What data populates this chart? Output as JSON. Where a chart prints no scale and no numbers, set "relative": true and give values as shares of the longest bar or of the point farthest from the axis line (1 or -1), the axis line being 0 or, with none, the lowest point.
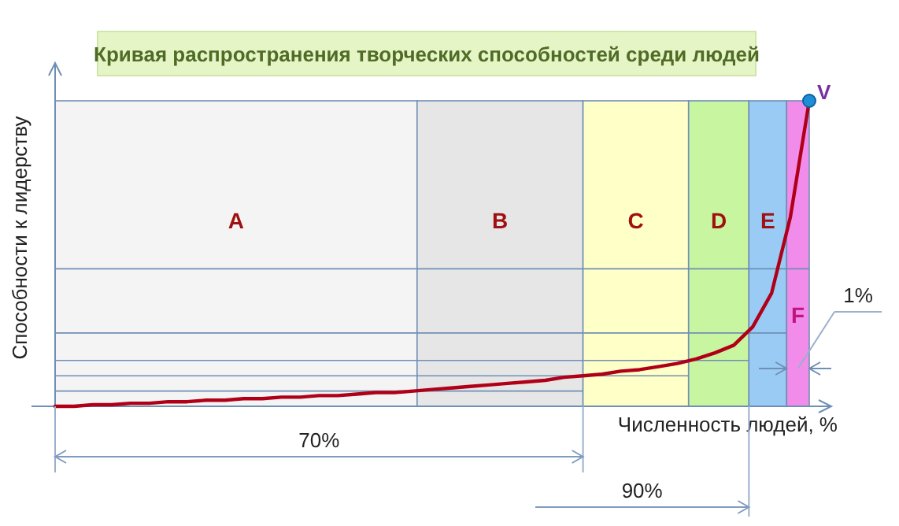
{
  "chart_data": {
    "type": "line",
    "title": "Кривая распространения творческих способностей среди людей",
    "xlabel": "Численность людей, %",
    "ylabel": "Способности к лидерству",
    "relative": true,
    "categories": [
      null,
      null,
      null,
      null,
      null,
      null,
      null,
      null,
      null,
      null,
      null,
      null,
      null,
      null,
      null,
      null,
      null,
      null,
      null,
      null,
      null,
      null,
      null,
      null,
      null,
      null,
      null,
      null,
      null,
      null,
      null,
      null,
      null,
      null,
      null,
      null,
      null,
      null,
      null,
      null,
      null
    ],
    "series": [
      {
        "color": "#b00018",
        "values": [
          0,
          0,
          0.005,
          0.005,
          0.01,
          0.01,
          0.015,
          0.015,
          0.02,
          0.02,
          0.025,
          0.025,
          0.03,
          0.03,
          0.035,
          0.035,
          0.04,
          0.045,
          0.045,
          0.05,
          0.055,
          0.06,
          0.065,
          0.07,
          0.075,
          0.08,
          0.085,
          0.095,
          0.1,
          0.105,
          0.115,
          0.12,
          0.13,
          0.14,
          0.155,
          0.175,
          0.2,
          0.26,
          0.37,
          0.62,
          1
        ]
      }
    ],
    "ref_lines": [
      {
        "axis": "y",
        "value": 0.05
      },
      {
        "axis": "y",
        "value": 0.1
      },
      {
        "axis": "y",
        "value": 0.15
      },
      {
        "axis": "y",
        "value": 0.24
      },
      {
        "axis": "y",
        "value": 0.45
      }
    ],
    "annotations": [
      "V",
      "A",
      "B",
      "C",
      "D",
      "E",
      "F",
      "70%",
      "90%",
      "1%"
    ]
  }
}
